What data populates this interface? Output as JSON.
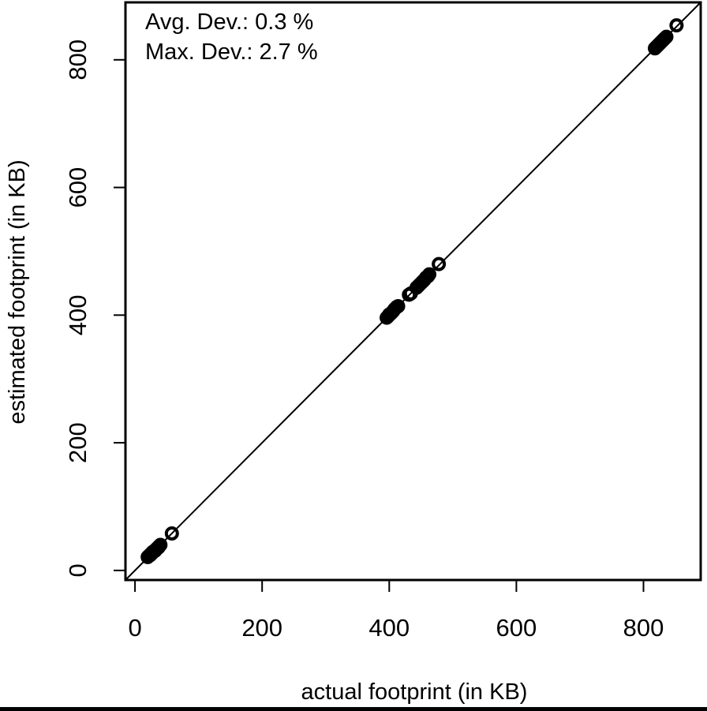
{
  "chart_data": {
    "type": "scatter",
    "xlabel": "actual footprint (in KB)",
    "ylabel": "estimated footprint (in KB)",
    "xlim": [
      -15,
      890
    ],
    "ylim": [
      -15,
      890
    ],
    "xticks": [
      "0",
      "200",
      "400",
      "600",
      "800"
    ],
    "yticks": [
      "0",
      "200",
      "400",
      "600",
      "800"
    ],
    "tick_values": [
      0,
      200,
      400,
      600,
      800
    ],
    "annotations": [
      "Avg. Dev.: 0.3 %",
      "Max. Dev.: 2.7 %"
    ],
    "reference_line": "y = x",
    "marker": "open circle",
    "color": "#000000",
    "grid": false,
    "points": [
      {
        "x": 20,
        "y": 21
      },
      {
        "x": 22,
        "y": 23
      },
      {
        "x": 24,
        "y": 24
      },
      {
        "x": 25,
        "y": 26
      },
      {
        "x": 27,
        "y": 27
      },
      {
        "x": 28,
        "y": 29
      },
      {
        "x": 30,
        "y": 30
      },
      {
        "x": 32,
        "y": 31
      },
      {
        "x": 33,
        "y": 33
      },
      {
        "x": 35,
        "y": 35
      },
      {
        "x": 37,
        "y": 36
      },
      {
        "x": 38,
        "y": 38
      },
      {
        "x": 40,
        "y": 40
      },
      {
        "x": 58,
        "y": 58
      },
      {
        "x": 396,
        "y": 396
      },
      {
        "x": 398,
        "y": 398
      },
      {
        "x": 400,
        "y": 401
      },
      {
        "x": 402,
        "y": 402
      },
      {
        "x": 404,
        "y": 404
      },
      {
        "x": 406,
        "y": 406
      },
      {
        "x": 408,
        "y": 409
      },
      {
        "x": 410,
        "y": 411
      },
      {
        "x": 412,
        "y": 413
      },
      {
        "x": 414,
        "y": 414
      },
      {
        "x": 431,
        "y": 432
      },
      {
        "x": 434,
        "y": 434
      },
      {
        "x": 443,
        "y": 443
      },
      {
        "x": 446,
        "y": 446
      },
      {
        "x": 449,
        "y": 449
      },
      {
        "x": 452,
        "y": 452
      },
      {
        "x": 455,
        "y": 455
      },
      {
        "x": 458,
        "y": 459
      },
      {
        "x": 461,
        "y": 461
      },
      {
        "x": 463,
        "y": 464
      },
      {
        "x": 478,
        "y": 480
      },
      {
        "x": 818,
        "y": 818
      },
      {
        "x": 820,
        "y": 820
      },
      {
        "x": 822,
        "y": 822
      },
      {
        "x": 824,
        "y": 824
      },
      {
        "x": 826,
        "y": 826
      },
      {
        "x": 828,
        "y": 828
      },
      {
        "x": 830,
        "y": 830
      },
      {
        "x": 832,
        "y": 832
      },
      {
        "x": 834,
        "y": 834
      },
      {
        "x": 836,
        "y": 836
      },
      {
        "x": 852,
        "y": 854
      }
    ]
  }
}
